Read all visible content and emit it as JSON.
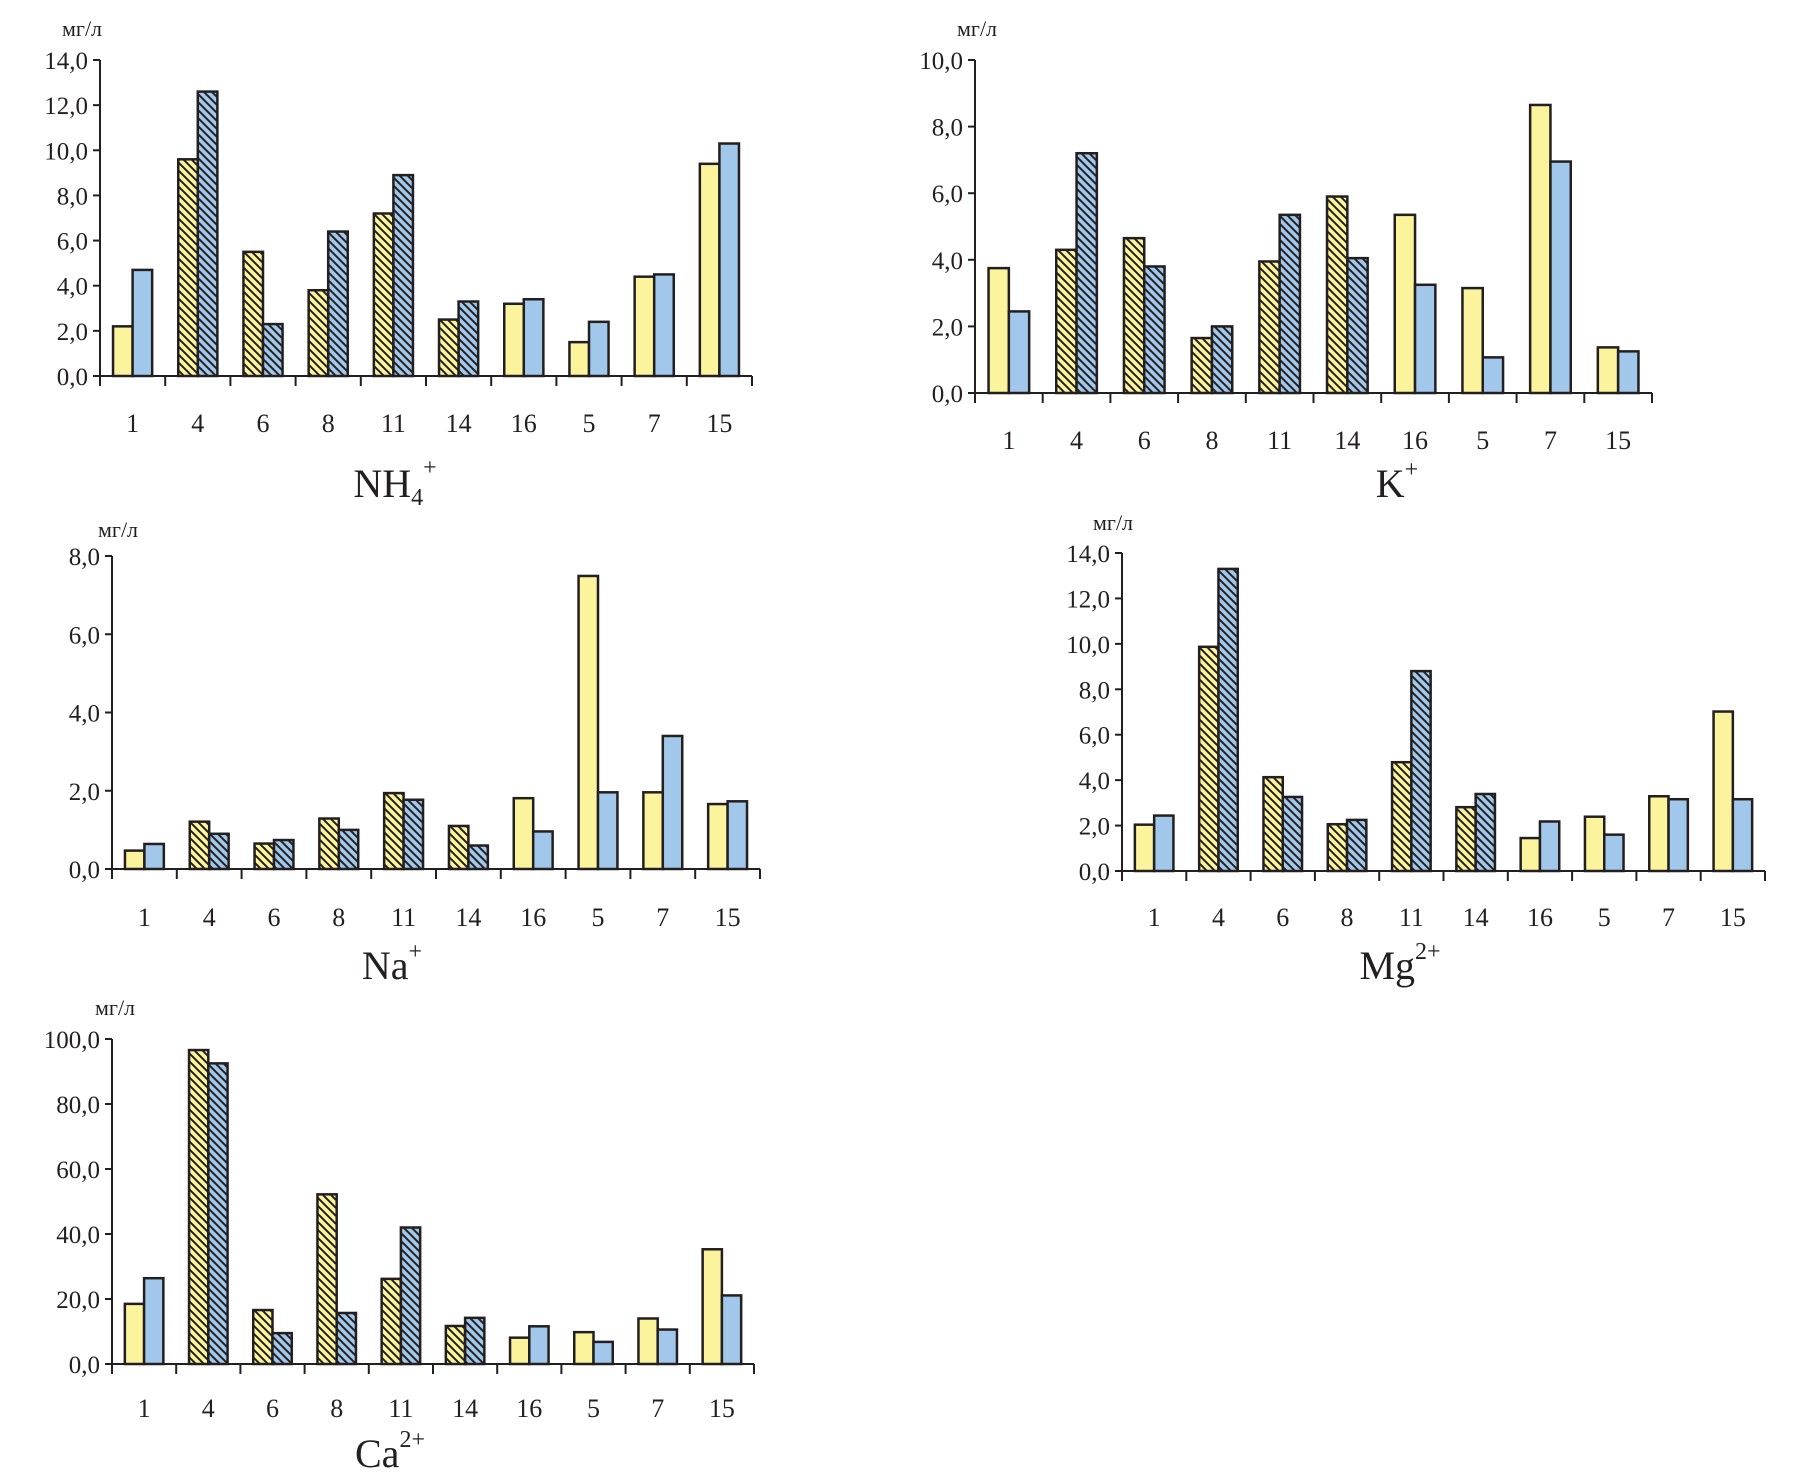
{
  "colors": {
    "series_a": "#fbf49c",
    "series_b": "#a1c8ea",
    "outline": "#231f20",
    "hatch": "#231f20"
  },
  "chart_data": [
    {
      "id": "nh4",
      "type": "bar",
      "title": "NH4+",
      "title_main": "NH",
      "title_sub": "4",
      "title_sup": "+",
      "ylabel": "мг/л",
      "xlabel": "",
      "ylim": [
        0,
        14
      ],
      "yticks": [
        "0,0",
        "2,0",
        "4,0",
        "6,0",
        "8,0",
        "10,0",
        "12,0",
        "14,0"
      ],
      "ytick_values": [
        0,
        2,
        4,
        6,
        8,
        10,
        12,
        14
      ],
      "categories": [
        "1",
        "4",
        "6",
        "8",
        "11",
        "14",
        "16",
        "5",
        "7",
        "15"
      ],
      "hatched_categories": [
        "4",
        "6",
        "8",
        "11",
        "14"
      ],
      "series": [
        {
          "name": "series A (yellow)",
          "values": [
            2.2,
            9.6,
            5.5,
            3.8,
            7.2,
            2.5,
            3.2,
            1.5,
            4.4,
            9.4
          ]
        },
        {
          "name": "series B (blue)",
          "values": [
            4.7,
            12.6,
            2.3,
            6.4,
            8.9,
            3.3,
            3.4,
            2.4,
            4.5,
            10.3
          ]
        }
      ],
      "grid": false,
      "legend": "none"
    },
    {
      "id": "k",
      "type": "bar",
      "title": "K+",
      "title_main": "K",
      "title_sub": "",
      "title_sup": "+",
      "ylabel": "мг/л",
      "xlabel": "",
      "ylim": [
        0,
        10
      ],
      "yticks": [
        "0,0",
        "2,0",
        "4,0",
        "6,0",
        "8,0",
        "10,0"
      ],
      "ytick_values": [
        0,
        2,
        4,
        6,
        8,
        10
      ],
      "categories": [
        "1",
        "4",
        "6",
        "8",
        "11",
        "14",
        "16",
        "5",
        "7",
        "15"
      ],
      "hatched_categories": [
        "4",
        "6",
        "8",
        "11",
        "14"
      ],
      "series": [
        {
          "name": "series A (yellow)",
          "values": [
            3.75,
            4.3,
            4.65,
            1.65,
            3.95,
            5.9,
            5.35,
            3.15,
            8.65,
            1.37
          ]
        },
        {
          "name": "series B (blue)",
          "values": [
            2.45,
            7.2,
            3.8,
            2.0,
            5.35,
            4.05,
            3.25,
            1.07,
            6.95,
            1.25
          ]
        }
      ],
      "grid": false,
      "legend": "none"
    },
    {
      "id": "na",
      "type": "bar",
      "title": "Na+",
      "title_main": "Na",
      "title_sub": "",
      "title_sup": "+",
      "ylabel": "мг/л",
      "xlabel": "",
      "ylim": [
        0,
        8
      ],
      "yticks": [
        "0,0",
        "2,0",
        "4,0",
        "6,0",
        "8,0"
      ],
      "ytick_values": [
        0,
        2,
        4,
        6,
        8
      ],
      "categories": [
        "1",
        "4",
        "6",
        "8",
        "11",
        "14",
        "16",
        "5",
        "7",
        "15"
      ],
      "hatched_categories": [
        "4",
        "6",
        "8",
        "11",
        "14"
      ],
      "series": [
        {
          "name": "series A (yellow)",
          "values": [
            0.47,
            1.21,
            0.65,
            1.29,
            1.94,
            1.1,
            1.81,
            7.49,
            1.96,
            1.66
          ]
        },
        {
          "name": "series B (blue)",
          "values": [
            0.64,
            0.9,
            0.74,
            1.0,
            1.77,
            0.6,
            0.96,
            1.96,
            3.4,
            1.73
          ]
        }
      ],
      "grid": false,
      "legend": "none"
    },
    {
      "id": "mg",
      "type": "bar",
      "title": "Mg2+",
      "title_main": "Mg",
      "title_sub": "",
      "title_sup": "2+",
      "ylabel": "мг/л",
      "xlabel": "",
      "ylim": [
        0,
        14
      ],
      "yticks": [
        "0,0",
        "2,0",
        "4,0",
        "6,0",
        "8,0",
        "10,0",
        "12,0",
        "14,0"
      ],
      "ytick_values": [
        0,
        2,
        4,
        6,
        8,
        10,
        12,
        14
      ],
      "categories": [
        "1",
        "4",
        "6",
        "8",
        "11",
        "14",
        "16",
        "5",
        "7",
        "15"
      ],
      "hatched_categories": [
        "4",
        "6",
        "8",
        "11",
        "14"
      ],
      "series": [
        {
          "name": "series A (yellow)",
          "values": [
            2.04,
            9.87,
            4.13,
            2.06,
            4.79,
            2.81,
            1.45,
            2.39,
            3.29,
            7.02
          ]
        },
        {
          "name": "series B (blue)",
          "values": [
            2.44,
            13.3,
            3.26,
            2.25,
            8.8,
            3.39,
            2.18,
            1.6,
            3.16,
            3.16
          ]
        }
      ],
      "grid": false,
      "legend": "none"
    },
    {
      "id": "ca",
      "type": "bar",
      "title": "Ca2+",
      "title_main": "Ca",
      "title_sub": "",
      "title_sup": "2+",
      "ylabel": "мг/л",
      "xlabel": "",
      "ylim": [
        0,
        100
      ],
      "yticks": [
        "0,0",
        "20,0",
        "40,0",
        "60,0",
        "80,0",
        "100,0"
      ],
      "ytick_values": [
        0,
        20,
        40,
        60,
        80,
        100
      ],
      "categories": [
        "1",
        "4",
        "6",
        "8",
        "11",
        "14",
        "16",
        "5",
        "7",
        "15"
      ],
      "hatched_categories": [
        "4",
        "6",
        "8",
        "11",
        "14"
      ],
      "series": [
        {
          "name": "series A (yellow)",
          "values": [
            18.5,
            96.6,
            16.6,
            52.2,
            26.2,
            11.7,
            8.1,
            9.8,
            14.0,
            35.3
          ]
        },
        {
          "name": "series B (blue)",
          "values": [
            26.4,
            92.5,
            9.5,
            15.7,
            42.0,
            14.2,
            11.6,
            6.8,
            10.6,
            21.1
          ]
        }
      ],
      "grid": false,
      "legend": "none"
    }
  ]
}
